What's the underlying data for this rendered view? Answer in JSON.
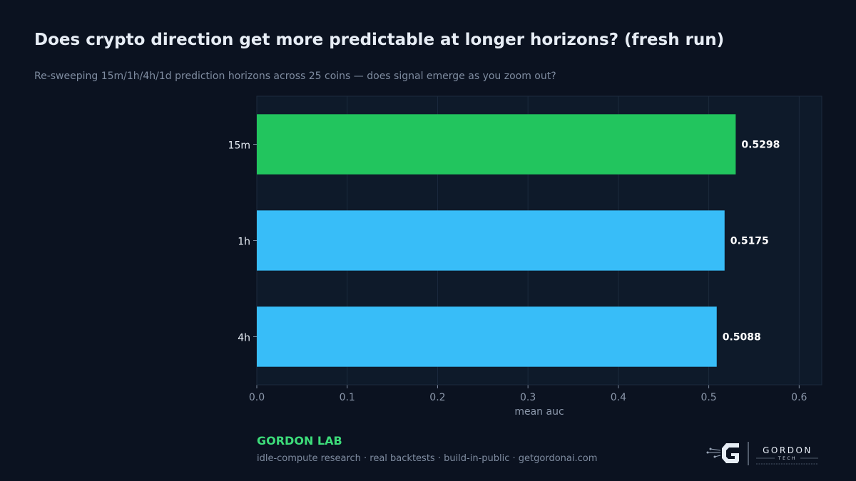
{
  "header": {
    "title": "Does crypto direction get more predictable at longer horizons? (fresh run)",
    "subtitle": "Re-sweeping 15m/1h/4h/1d prediction horizons across 25 coins — does signal emerge as you zoom out?"
  },
  "chart_data": {
    "type": "bar",
    "orientation": "horizontal",
    "categories": [
      "15m",
      "1h",
      "4h"
    ],
    "values": [
      0.5298,
      0.5175,
      0.5088
    ],
    "value_labels": [
      "0.5298",
      "0.5175",
      "0.5088"
    ],
    "bar_colors": [
      "#22c55e",
      "#38bdf8",
      "#38bdf8"
    ],
    "xlabel": "mean auc",
    "ylabel": "",
    "xlim": [
      0,
      0.625
    ],
    "xticks": [
      0.0,
      0.1,
      0.2,
      0.3,
      0.4,
      0.5,
      0.6
    ],
    "xtick_labels": [
      "0.0",
      "0.1",
      "0.2",
      "0.3",
      "0.4",
      "0.5",
      "0.6"
    ],
    "grid": "vertical"
  },
  "footer": {
    "brand": "GORDON LAB",
    "tagline": "idle-compute research · real backtests · build-in-public · getgordonai.com",
    "logo_wordmark": "GORDON",
    "logo_sub": "TECH",
    "logo_icon": "gordon-g-logo-icon"
  },
  "colors": {
    "background": "#0b1220",
    "plot_background": "#0e1a2a",
    "accent_green": "#22c55e",
    "accent_blue": "#38bdf8",
    "brand_green": "#3ddc7a"
  }
}
